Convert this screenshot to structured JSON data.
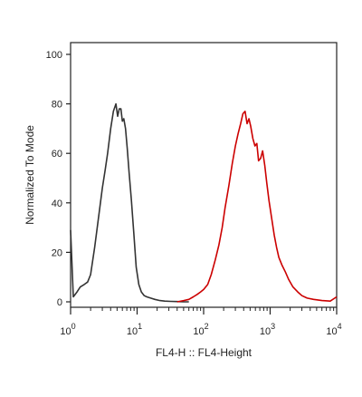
{
  "chart_data": {
    "type": "line",
    "title": "",
    "xlabel": "FL4-H :: FL4-Height",
    "ylabel": "Normalized To Mode",
    "x_scale": "log",
    "xlim": [
      1,
      10000
    ],
    "ylim": [
      0,
      100
    ],
    "x_ticks": [
      {
        "value": 1,
        "base": "10",
        "exp": "0"
      },
      {
        "value": 10,
        "base": "10",
        "exp": "1"
      },
      {
        "value": 100,
        "base": "10",
        "exp": "2"
      },
      {
        "value": 1000,
        "base": "10",
        "exp": "3"
      },
      {
        "value": 10000,
        "base": "10",
        "exp": "4"
      }
    ],
    "y_ticks": [
      0,
      20,
      40,
      60,
      80,
      100
    ],
    "grid": false,
    "series": [
      {
        "color": "#333333",
        "x": [
          1.0,
          1.1,
          1.25,
          1.4,
          1.6,
          1.8,
          2.0,
          2.3,
          2.6,
          3.0,
          3.3,
          3.6,
          4.0,
          4.4,
          4.8,
          5.1,
          5.4,
          5.7,
          6.0,
          6.3,
          6.7,
          7.1,
          7.6,
          8.2,
          8.9,
          9.7,
          10.6,
          11.6,
          12.8,
          14.0,
          16.0,
          18.5,
          22.0,
          26.0,
          32.0,
          40.0,
          50.0,
          60.0
        ],
        "y": [
          29,
          2,
          4,
          6,
          7,
          8,
          11,
          22,
          33,
          46,
          53,
          60,
          70,
          77,
          80,
          75,
          78,
          78,
          73,
          74,
          70,
          62,
          52,
          41,
          28,
          14,
          7,
          4,
          2.5,
          2,
          1.5,
          1,
          0.5,
          0.3,
          0.2,
          0.1,
          0,
          0
        ]
      },
      {
        "color": "#cc0000",
        "x": [
          40,
          50,
          60,
          70,
          80,
          90,
          100,
          115,
          130,
          150,
          170,
          190,
          210,
          240,
          270,
          300,
          330,
          360,
          390,
          420,
          450,
          480,
          510,
          550,
          590,
          630,
          670,
          720,
          770,
          830,
          890,
          960,
          1050,
          1150,
          1250,
          1350,
          1500,
          1700,
          1900,
          2200,
          2600,
          3000,
          3600,
          4500,
          6000,
          8000,
          10000
        ],
        "y": [
          0,
          0.5,
          1,
          2,
          3,
          4,
          5,
          7,
          11,
          17,
          23,
          30,
          38,
          47,
          56,
          63,
          68,
          72,
          76,
          77,
          72,
          74,
          71,
          66,
          63,
          64,
          57,
          58,
          61,
          55,
          48,
          41,
          34,
          27,
          22,
          18,
          15,
          12,
          9,
          6,
          4,
          2.5,
          1.5,
          1,
          0.5,
          0.3,
          2
        ]
      }
    ]
  }
}
